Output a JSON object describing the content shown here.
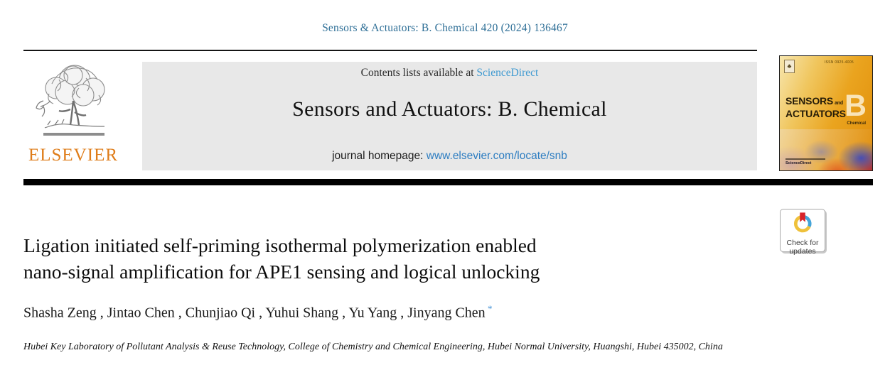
{
  "citation": "Sensors & Actuators: B. Chemical 420 (2024) 136467",
  "masthead": {
    "contents_prefix": "Contents lists available at ",
    "sciencedirect_label": "ScienceDirect",
    "journal_title": "Sensors and Actuators: B. Chemical",
    "homepage_prefix": "journal homepage: ",
    "homepage_url": "www.elsevier.com/locate/snb",
    "publisher_name": "ELSEVIER"
  },
  "cover": {
    "issn": "ISSN 0925-4005",
    "title_word1": "SENSORS",
    "title_and": "and",
    "title_word2": "ACTUATORS",
    "big_letter": "B",
    "subtitle": "Chemical",
    "footer_label": "ScienceDirect",
    "mark_glyph": "♣"
  },
  "article": {
    "title_line1": "Ligation initiated self-priming isothermal polymerization enabled",
    "title_line2": "nano-signal amplification for APE1 sensing and logical unlocking",
    "author_separator": " , ",
    "authors": [
      {
        "name": "Shasha Zeng"
      },
      {
        "name": "Jintao Chen"
      },
      {
        "name": "Chunjiao Qi"
      },
      {
        "name": "Yuhui Shang"
      },
      {
        "name": "Yu Yang"
      },
      {
        "name": "Jinyang Chen",
        "marker": "*"
      }
    ],
    "affiliation": "Hubei Key Laboratory of Pollutant Analysis & Reuse Technology, College of Chemistry and Chemical Engineering, Hubei Normal University, Huangshi, Hubei 435002, China"
  },
  "badge": {
    "line1": "Check for",
    "line2": "updates"
  },
  "colors": {
    "citation_blue": "#2d6e96",
    "sciencedirect_blue": "#3f9ad1",
    "homepage_blue": "#2d7dc1",
    "elsevier_orange": "#df7d1a",
    "panel_gray": "#e8e8e8",
    "badge_yellow": "#efc13b",
    "badge_blue": "#44a4d9",
    "badge_red": "#d8232a"
  }
}
